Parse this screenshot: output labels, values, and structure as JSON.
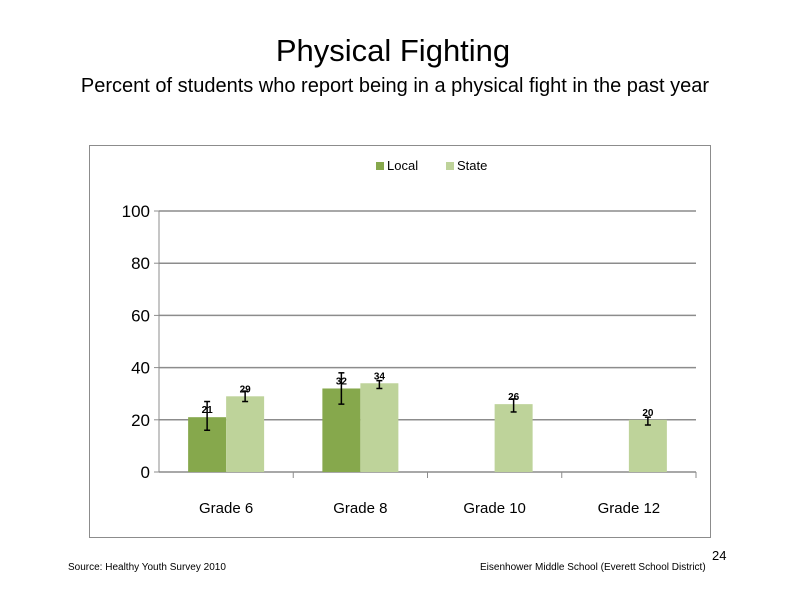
{
  "slide": {
    "title": "Physical Fighting",
    "subtitle": "Percent of students who report being in a physical fight in the past year",
    "source": "Source: Healthy Youth Survey 2010",
    "school": "Eisenhower Middle  School (Everett School District)",
    "page_number": "24"
  },
  "chart_data": {
    "type": "bar",
    "title": "",
    "xlabel": "",
    "ylabel": "",
    "categories": [
      "Grade 6",
      "Grade 8",
      "Grade 10",
      "Grade 12"
    ],
    "ylim": [
      0,
      100
    ],
    "yticks": [
      0,
      20,
      40,
      60,
      80,
      100
    ],
    "grid": true,
    "legend_position": "top-center",
    "series": [
      {
        "name": "Local",
        "color": "#86a84c",
        "values": [
          21,
          32,
          null,
          null
        ],
        "labels": [
          "21",
          "32",
          "",
          ""
        ],
        "error_low": [
          16,
          26,
          null,
          null
        ],
        "error_high": [
          27,
          38,
          null,
          null
        ]
      },
      {
        "name": "State",
        "color": "#bed39a",
        "values": [
          29,
          34,
          26,
          20
        ],
        "labels": [
          "29",
          "34",
          "26",
          "20"
        ],
        "error_low": [
          27,
          32,
          23,
          18
        ],
        "error_high": [
          31,
          35,
          28,
          21
        ]
      }
    ]
  }
}
